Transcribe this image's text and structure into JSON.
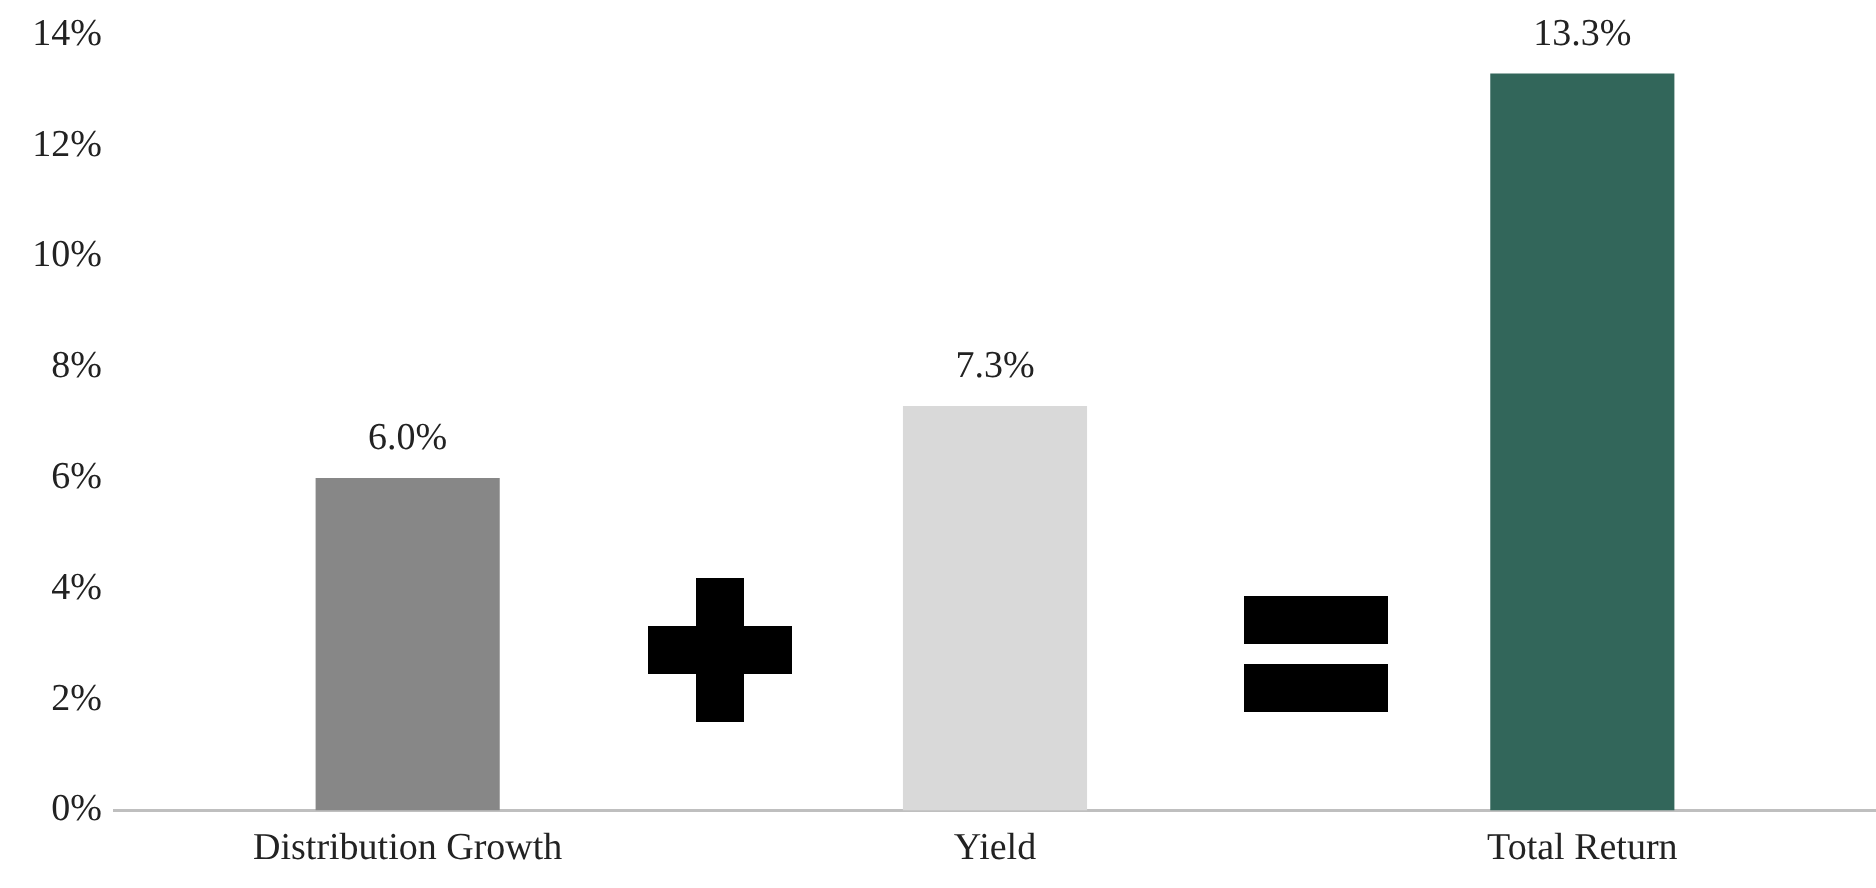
{
  "chart_data": {
    "type": "bar",
    "categories": [
      "Distribution Growth",
      "Yield",
      "Total Return"
    ],
    "values": [
      6.0,
      7.3,
      13.3
    ],
    "colors": [
      "#878787",
      "#d9d9d9",
      "#32665a"
    ],
    "value_labels": [
      "6.0%",
      "7.3%",
      "13.3%"
    ],
    "ylim": [
      0,
      14
    ],
    "yticks": [
      {
        "value": 0,
        "label": "0%"
      },
      {
        "value": 2,
        "label": "2%"
      },
      {
        "value": 4,
        "label": "4%"
      },
      {
        "value": 6,
        "label": "6%"
      },
      {
        "value": 8,
        "label": "8%"
      },
      {
        "value": 10,
        "label": "10%"
      },
      {
        "value": 12,
        "label": "12%"
      },
      {
        "value": 14,
        "label": "14%"
      }
    ],
    "grid": false,
    "legend": false
  }
}
